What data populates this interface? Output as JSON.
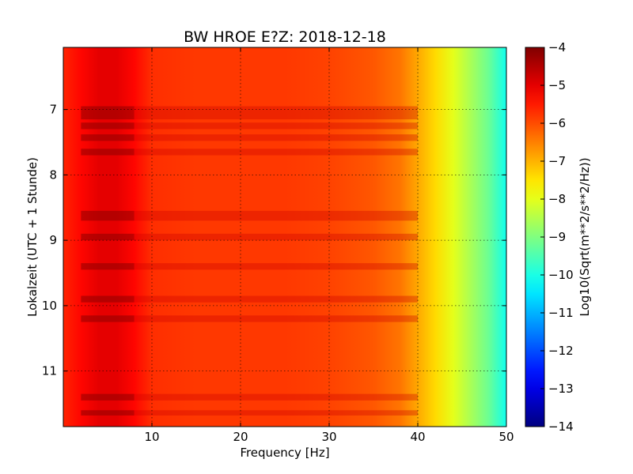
{
  "chart_data": {
    "type": "heatmap",
    "title": "BW HROE E?Z: 2018-12-18",
    "xlabel": "Frequency [Hz]",
    "ylabel": "Lokalzeit (UTC + 1 Stunde)",
    "xlim": [
      0,
      50
    ],
    "ylim": [
      6.05,
      11.85
    ],
    "y_inverted": true,
    "xticks": [
      10,
      20,
      30,
      40,
      50
    ],
    "xtick_labels": [
      "10",
      "20",
      "30",
      "40",
      "50"
    ],
    "yticks": [
      7,
      8,
      9,
      10,
      11
    ],
    "ytick_labels": [
      "7",
      "8",
      "9",
      "10",
      "11"
    ],
    "grid": true,
    "colormap": "jet",
    "colorbar": {
      "label": "Log10(Sqrt(m**2/s**2/Hz))",
      "range": [
        -14,
        -4
      ],
      "ticks": [
        -4,
        -5,
        -6,
        -7,
        -8,
        -9,
        -10,
        -11,
        -12,
        -13,
        -14
      ],
      "tick_labels": [
        "−4",
        "−5",
        "−6",
        "−7",
        "−8",
        "−9",
        "−10",
        "−11",
        "−12",
        "−13",
        "−14"
      ]
    },
    "spectrum_profile": {
      "frequency_hz": [
        0,
        2,
        4,
        6,
        8,
        10,
        15,
        20,
        25,
        30,
        35,
        38,
        40,
        42,
        44,
        46,
        48,
        50
      ],
      "level": [
        -5.6,
        -5.3,
        -5.0,
        -5.0,
        -5.3,
        -5.7,
        -5.8,
        -5.8,
        -5.8,
        -5.9,
        -6.1,
        -6.4,
        -6.9,
        -7.4,
        -8.0,
        -8.6,
        -9.2,
        -10.1
      ]
    },
    "loud_intervals_hours": [
      [
        6.95,
        7.15
      ],
      [
        7.2,
        7.3
      ],
      [
        7.38,
        7.48
      ],
      [
        7.6,
        7.7
      ],
      [
        8.55,
        8.7
      ],
      [
        8.9,
        9.0
      ],
      [
        9.35,
        9.45
      ],
      [
        9.85,
        9.95
      ],
      [
        10.15,
        10.25
      ],
      [
        11.35,
        11.45
      ],
      [
        11.6,
        11.68
      ]
    ]
  }
}
